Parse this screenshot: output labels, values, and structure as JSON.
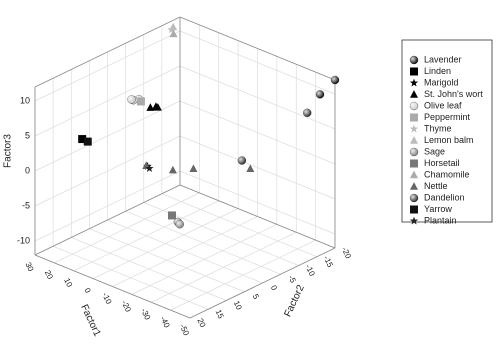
{
  "chart_data": {
    "type": "scatter3d",
    "xlabel": "Factor1",
    "ylabel": "Factor2",
    "zlabel": "Factor3",
    "xlim": [
      -50,
      30
    ],
    "ylim": [
      -20,
      20
    ],
    "zlim": [
      -12,
      12
    ],
    "xticks": [
      30,
      20,
      10,
      0,
      -10,
      -20,
      -30,
      -40,
      -50
    ],
    "yticks": [
      -20,
      -15,
      -10,
      -5,
      0,
      5,
      10,
      15,
      20
    ],
    "zticks": [
      -10,
      -5,
      0,
      5,
      10
    ],
    "grid": true,
    "legend": "right",
    "series": [
      {
        "name": "Lavender",
        "marker": "sphere",
        "color": "#111111",
        "x": [
          -50,
          -46
        ],
        "y": [
          -20,
          -18
        ],
        "z": [
          12,
          10
        ]
      },
      {
        "name": "Linden",
        "marker": "square",
        "color": "#000000",
        "x": [
          15
        ],
        "y": [
          15
        ],
        "z": [
          5
        ]
      },
      {
        "name": "Marigold",
        "marker": "star",
        "color": "#000000",
        "x": [
          0
        ],
        "y": [
          5
        ],
        "z": [
          0.3
        ]
      },
      {
        "name": "St. John's wort",
        "marker": "triangle",
        "color": "#000000",
        "x": [
          5,
          4,
          6
        ],
        "y": [
          0,
          0,
          1
        ],
        "z": [
          7,
          7,
          7
        ]
      },
      {
        "name": "Olive leaf",
        "marker": "sphere",
        "color": "#cccccc",
        "x": [
          10,
          11,
          12
        ],
        "y": [
          2,
          3,
          3
        ],
        "z": [
          8,
          8,
          8
        ]
      },
      {
        "name": "Peppermint",
        "marker": "square",
        "color": "#aaaaaa",
        "x": [
          9
        ],
        "y": [
          2
        ],
        "z": [
          7.8
        ]
      },
      {
        "name": "Thyme",
        "marker": "star",
        "color": "#bbbbbb",
        "x": [
          25
        ],
        "y": [
          -15
        ],
        "z": [
          12
        ]
      },
      {
        "name": "Lemon balm",
        "marker": "triangle",
        "color": "#bbbbbb",
        "x": [
          26
        ],
        "y": [
          -16
        ],
        "z": [
          12
        ]
      },
      {
        "name": "Sage",
        "marker": "sphere",
        "color": "#888888",
        "x": [
          -25,
          -26
        ],
        "y": [
          10,
          10
        ],
        "z": [
          -3.6,
          -3.8
        ]
      },
      {
        "name": "Horsetail",
        "marker": "square",
        "color": "#777777",
        "x": [
          -22
        ],
        "y": [
          10
        ],
        "z": [
          -3
        ]
      },
      {
        "name": "Chamomile",
        "marker": "triangle",
        "color": "#aaaaaa",
        "x": [
          24
        ],
        "y": [
          -15
        ],
        "z": [
          11.5
        ]
      },
      {
        "name": "Nettle",
        "marker": "triangle",
        "color": "#666666",
        "x": [
          10,
          0,
          -5,
          -25
        ],
        "y": [
          0,
          -2,
          -5,
          -10
        ],
        "z": [
          -2,
          -2,
          -2,
          -1
        ]
      },
      {
        "name": "Dandelion",
        "marker": "sphere",
        "color": "#333333",
        "x": [
          -45,
          -30
        ],
        "y": [
          -15,
          -5
        ],
        "z": [
          8,
          2
        ]
      },
      {
        "name": "Yarrow",
        "marker": "square",
        "color": "#111111",
        "x": [
          14
        ],
        "y": [
          14
        ],
        "z": [
          4.5
        ]
      },
      {
        "name": "Plantain",
        "marker": "star",
        "color": "#222222",
        "x": [
          -1
        ],
        "y": [
          5
        ],
        "z": [
          0.1
        ]
      }
    ]
  }
}
